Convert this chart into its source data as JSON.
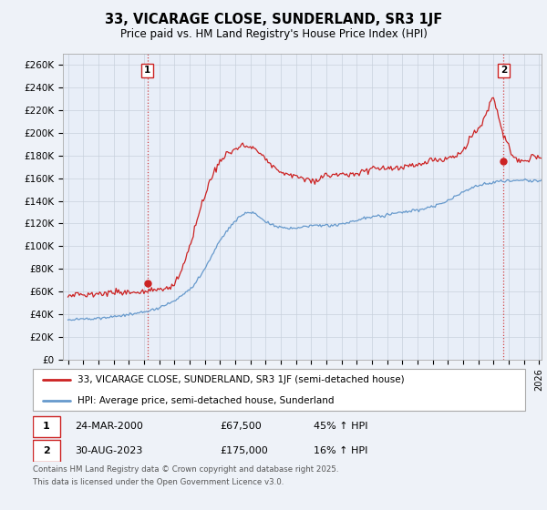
{
  "title": "33, VICARAGE CLOSE, SUNDERLAND, SR3 1JF",
  "subtitle": "Price paid vs. HM Land Registry's House Price Index (HPI)",
  "ylabel_ticks": [
    "£0",
    "£20K",
    "£40K",
    "£60K",
    "£80K",
    "£100K",
    "£120K",
    "£140K",
    "£160K",
    "£180K",
    "£200K",
    "£220K",
    "£240K",
    "£260K"
  ],
  "ytick_vals": [
    0,
    20000,
    40000,
    60000,
    80000,
    100000,
    120000,
    140000,
    160000,
    180000,
    200000,
    220000,
    240000,
    260000
  ],
  "ylim": [
    0,
    270000
  ],
  "sale1_price": 67500,
  "sale2_price": 175000,
  "hpi_line_color": "#6699cc",
  "price_line_color": "#cc2222",
  "dashed_line_color": "#cc2222",
  "legend1": "33, VICARAGE CLOSE, SUNDERLAND, SR3 1JF (semi-detached house)",
  "legend2": "HPI: Average price, semi-detached house, Sunderland",
  "footer": "Contains HM Land Registry data © Crown copyright and database right 2025.\nThis data is licensed under the Open Government Licence v3.0.",
  "background_color": "#eef2f8",
  "plot_bg_color": "#e8eef8"
}
